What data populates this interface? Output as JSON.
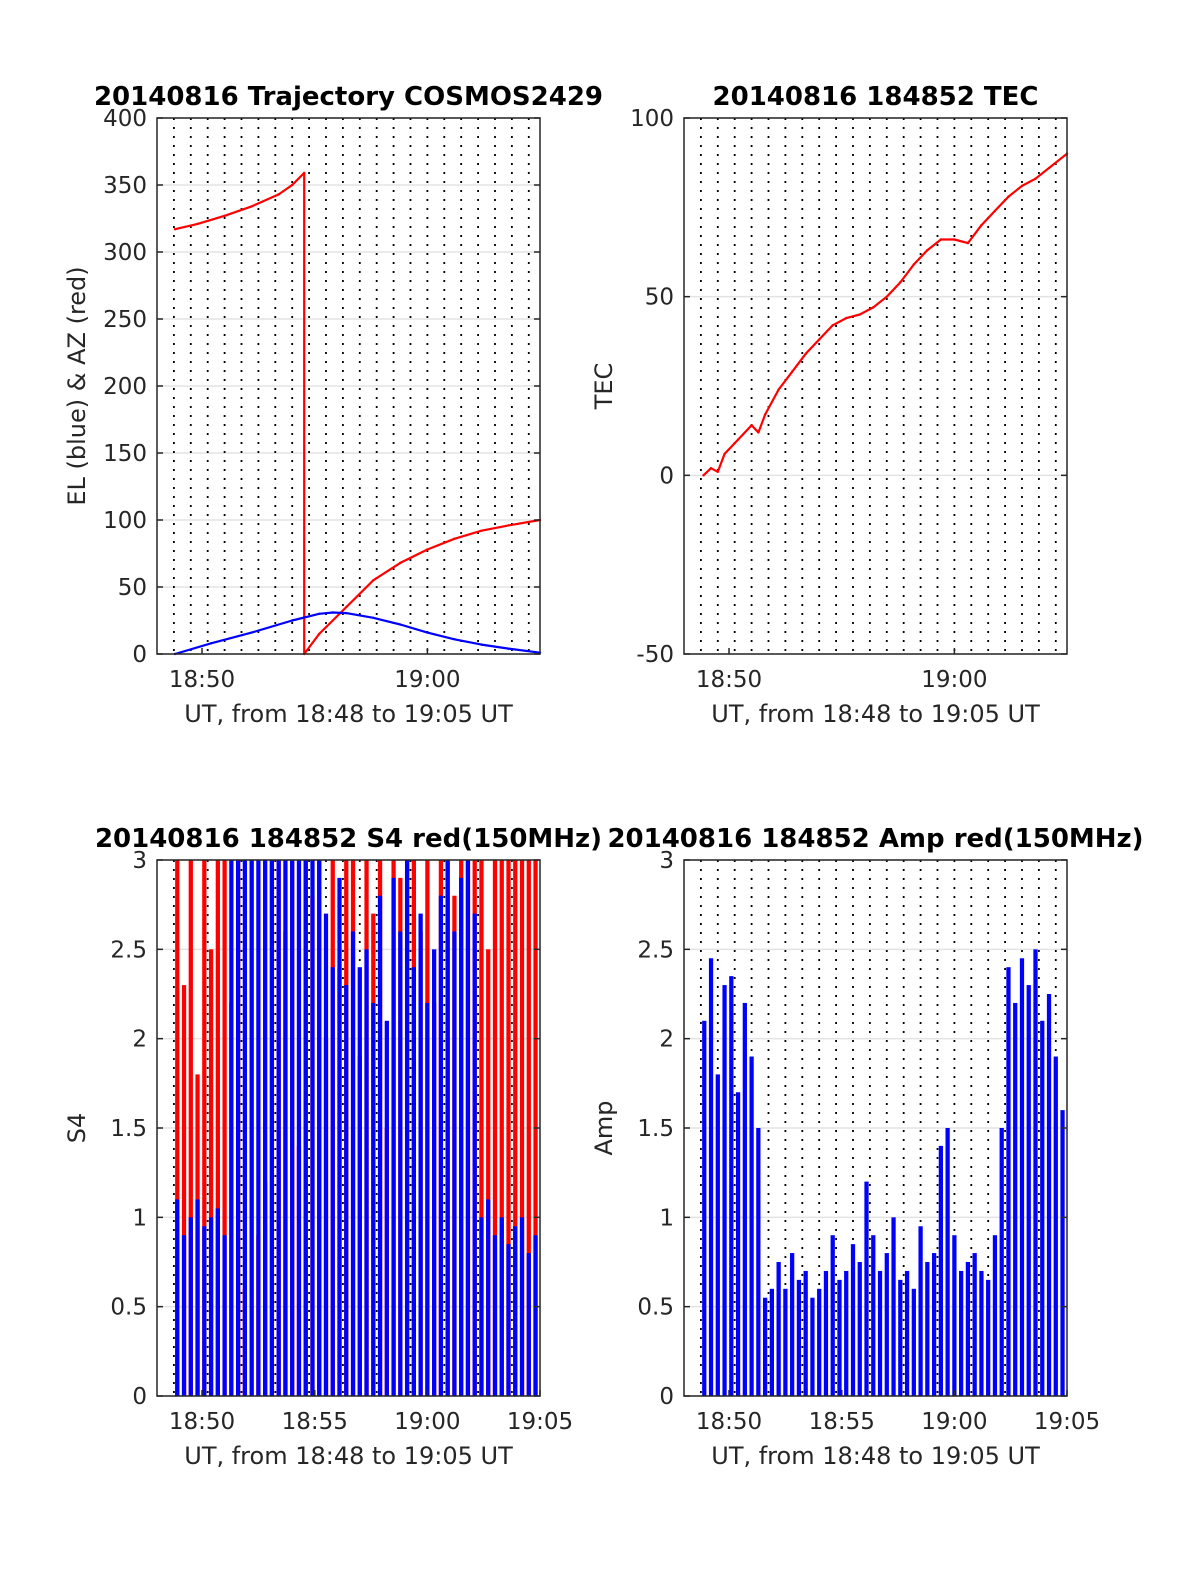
{
  "chart_data": [
    {
      "type": "line",
      "title": "20140816 Trajectory COSMOS2429",
      "xlabel": "UT, from 18:48 to 19:05 UT",
      "ylabel": "EL (blue) & AZ (red)",
      "xlim": [
        18.8,
        19.0833
      ],
      "ylim": [
        0,
        400
      ],
      "yticks": [
        0,
        50,
        100,
        150,
        200,
        250,
        300,
        350,
        400
      ],
      "ytick_labels": [
        "0",
        "50",
        "100",
        "150",
        "200",
        "250",
        "300",
        "350",
        "400"
      ],
      "xticks": [
        18.8333,
        19.0
      ],
      "xtick_labels": [
        "18:50",
        "19:00"
      ],
      "minor_vlines_min": 0.75,
      "grid": true,
      "legend": "none",
      "series": [
        {
          "color": "#ff0000",
          "x": [
            18.8133,
            18.83,
            18.85,
            18.87,
            18.89,
            18.9,
            18.9089,
            18.9089,
            18.92,
            18.94,
            18.96,
            18.98,
            19.0,
            19.02,
            19.04,
            19.06,
            19.0833
          ],
          "y": [
            317,
            321,
            327,
            334,
            343,
            350,
            359,
            0,
            15,
            35,
            55,
            68,
            78,
            86,
            92,
            96,
            100
          ]
        },
        {
          "color": "#0000ff",
          "x": [
            18.8133,
            18.84,
            18.87,
            18.9,
            18.92,
            18.93,
            18.94,
            18.96,
            18.98,
            19.0,
            19.02,
            19.04,
            19.06,
            19.0833
          ],
          "y": [
            0,
            8,
            16,
            25,
            30,
            31,
            30.5,
            27,
            22,
            16,
            11,
            7,
            4,
            1
          ]
        }
      ]
    },
    {
      "type": "line",
      "title": "20140816 184852 TEC",
      "xlabel": "UT, from 18:48 to 19:05 UT",
      "ylabel": "TEC",
      "xlim": [
        18.8,
        19.0833
      ],
      "ylim": [
        -50,
        100
      ],
      "yticks": [
        -50,
        0,
        50,
        100
      ],
      "ytick_labels": [
        "-50",
        "0",
        "50",
        "100"
      ],
      "xticks": [
        18.8333,
        19.0
      ],
      "xtick_labels": [
        "18:50",
        "19:00"
      ],
      "minor_vlines_min": 0.75,
      "grid": true,
      "legend": "none",
      "series": [
        {
          "color": "#ff0000",
          "x": [
            18.8144,
            18.82,
            18.825,
            18.83,
            18.84,
            18.85,
            18.855,
            18.86,
            18.87,
            18.88,
            18.89,
            18.9,
            18.91,
            18.92,
            18.93,
            18.94,
            18.95,
            18.96,
            18.97,
            18.98,
            18.99,
            19.0,
            19.01,
            19.02,
            19.03,
            19.04,
            19.05,
            19.06,
            19.07,
            19.0833
          ],
          "y": [
            0,
            2,
            1,
            6,
            10,
            14,
            12,
            17,
            24,
            29,
            34,
            38,
            42,
            44,
            45,
            47,
            50,
            54,
            59,
            63,
            66,
            66,
            65,
            70,
            74,
            78,
            81,
            83,
            86,
            90
          ]
        }
      ]
    },
    {
      "type": "bar",
      "title": "20140816 184852 S4 red(150MHz)",
      "xlabel": "UT, from 18:48 to 19:05 UT",
      "ylabel": "S4",
      "xlim": [
        18.8,
        19.0833
      ],
      "ylim": [
        0,
        3
      ],
      "yticks": [
        0,
        0.5,
        1,
        1.5,
        2,
        2.5,
        3
      ],
      "ytick_labels": [
        "0",
        "0.5",
        "1",
        "1.5",
        "2",
        "2.5",
        "3"
      ],
      "xticks": [
        18.8333,
        18.9167,
        19.0,
        19.0833
      ],
      "xtick_labels": [
        "18:50",
        "18:55",
        "19:00",
        "19:05"
      ],
      "minor_vlines_min": 0.75,
      "grid": true,
      "legend": "none",
      "series": [
        {
          "color": "#ff0000",
          "x": [
            18.815,
            18.82,
            18.825,
            18.83,
            18.835,
            18.84,
            18.845,
            18.85,
            18.855,
            18.86,
            18.865,
            18.87,
            18.875,
            18.88,
            18.885,
            18.89,
            18.895,
            18.9,
            18.905,
            18.91,
            18.915,
            18.92,
            18.925,
            18.93,
            18.935,
            18.94,
            18.945,
            18.95,
            18.955,
            18.96,
            18.965,
            18.97,
            18.975,
            18.98,
            18.985,
            18.99,
            18.995,
            19.0,
            19.005,
            19.01,
            19.015,
            19.02,
            19.025,
            19.03,
            19.035,
            19.04,
            19.045,
            19.05,
            19.055,
            19.06,
            19.065,
            19.07,
            19.075,
            19.08
          ],
          "y": [
            3,
            2.3,
            3,
            1.8,
            3,
            2.5,
            3,
            3,
            2.2,
            3,
            0.6,
            3,
            0.9,
            1.2,
            3,
            3,
            2.6,
            3,
            1.4,
            3,
            2.8,
            3,
            2.0,
            3,
            2.4,
            3,
            3,
            1.9,
            3,
            2.7,
            3,
            1.5,
            3,
            2.9,
            3,
            3,
            2.6,
            3,
            2.2,
            3,
            3,
            2.8,
            3,
            3,
            3,
            3,
            2.5,
            3,
            3,
            3,
            3,
            3,
            3,
            3
          ]
        },
        {
          "color": "#0000ff",
          "x": [
            18.815,
            18.82,
            18.825,
            18.83,
            18.835,
            18.84,
            18.845,
            18.85,
            18.855,
            18.86,
            18.865,
            18.87,
            18.875,
            18.88,
            18.885,
            18.89,
            18.895,
            18.9,
            18.905,
            18.91,
            18.915,
            18.92,
            18.925,
            18.93,
            18.935,
            18.94,
            18.945,
            18.95,
            18.955,
            18.96,
            18.965,
            18.97,
            18.975,
            18.98,
            18.985,
            18.99,
            18.995,
            19.0,
            19.005,
            19.01,
            19.015,
            19.02,
            19.025,
            19.03,
            19.035,
            19.04,
            19.045,
            19.05,
            19.055,
            19.06,
            19.065,
            19.07,
            19.075,
            19.08
          ],
          "y": [
            1.1,
            0.9,
            1.0,
            1.1,
            0.95,
            1.0,
            1.05,
            0.9,
            3,
            3,
            3,
            3,
            3,
            3,
            3,
            3,
            3,
            3,
            3,
            3,
            3,
            3,
            2.7,
            2.4,
            2.9,
            2.3,
            2.6,
            2.4,
            2.5,
            2.2,
            2.8,
            2.1,
            2.9,
            2.6,
            3,
            2.4,
            2.7,
            2.2,
            2.5,
            2.8,
            3,
            2.6,
            2.9,
            3,
            2.7,
            1.0,
            1.1,
            0.9,
            1.0,
            0.85,
            0.95,
            1.0,
            0.8,
            0.9
          ]
        }
      ]
    },
    {
      "type": "bar",
      "title": "20140816 184852 Amp red(150MHz)",
      "xlabel": "UT, from 18:48 to 19:05 UT",
      "ylabel": "Amp",
      "xlim": [
        18.8,
        19.0833
      ],
      "ylim": [
        0,
        3
      ],
      "yticks": [
        0,
        0.5,
        1,
        1.5,
        2,
        2.5,
        3
      ],
      "ytick_labels": [
        "0",
        "0.5",
        "1",
        "1.5",
        "2",
        "2.5",
        "3"
      ],
      "xticks": [
        18.8333,
        18.9167,
        19.0,
        19.0833
      ],
      "xtick_labels": [
        "18:50",
        "18:55",
        "19:00",
        "19:05"
      ],
      "minor_vlines_min": 0.75,
      "grid": true,
      "legend": "none",
      "series": [
        {
          "color": "#0000ff",
          "x": [
            18.815,
            18.82,
            18.825,
            18.83,
            18.835,
            18.84,
            18.845,
            18.85,
            18.855,
            18.86,
            18.865,
            18.87,
            18.875,
            18.88,
            18.885,
            18.89,
            18.895,
            18.9,
            18.905,
            18.91,
            18.915,
            18.92,
            18.925,
            18.93,
            18.935,
            18.94,
            18.945,
            18.95,
            18.955,
            18.96,
            18.965,
            18.97,
            18.975,
            18.98,
            18.985,
            18.99,
            18.995,
            19.0,
            19.005,
            19.01,
            19.015,
            19.02,
            19.025,
            19.03,
            19.035,
            19.04,
            19.045,
            19.05,
            19.055,
            19.06,
            19.065,
            19.07,
            19.075,
            19.08
          ],
          "y": [
            2.1,
            2.45,
            1.8,
            2.3,
            2.35,
            1.7,
            2.2,
            1.9,
            1.5,
            0.55,
            0.6,
            0.75,
            0.6,
            0.8,
            0.65,
            0.7,
            0.55,
            0.6,
            0.7,
            0.9,
            0.65,
            0.7,
            0.85,
            0.75,
            1.2,
            0.9,
            0.7,
            0.8,
            1.0,
            0.65,
            0.7,
            0.6,
            0.95,
            0.75,
            0.8,
            1.4,
            1.5,
            0.9,
            0.7,
            0.75,
            0.8,
            0.7,
            0.65,
            0.9,
            1.5,
            2.4,
            2.2,
            2.45,
            2.3,
            2.5,
            2.1,
            2.25,
            1.9,
            1.6
          ]
        }
      ]
    }
  ]
}
